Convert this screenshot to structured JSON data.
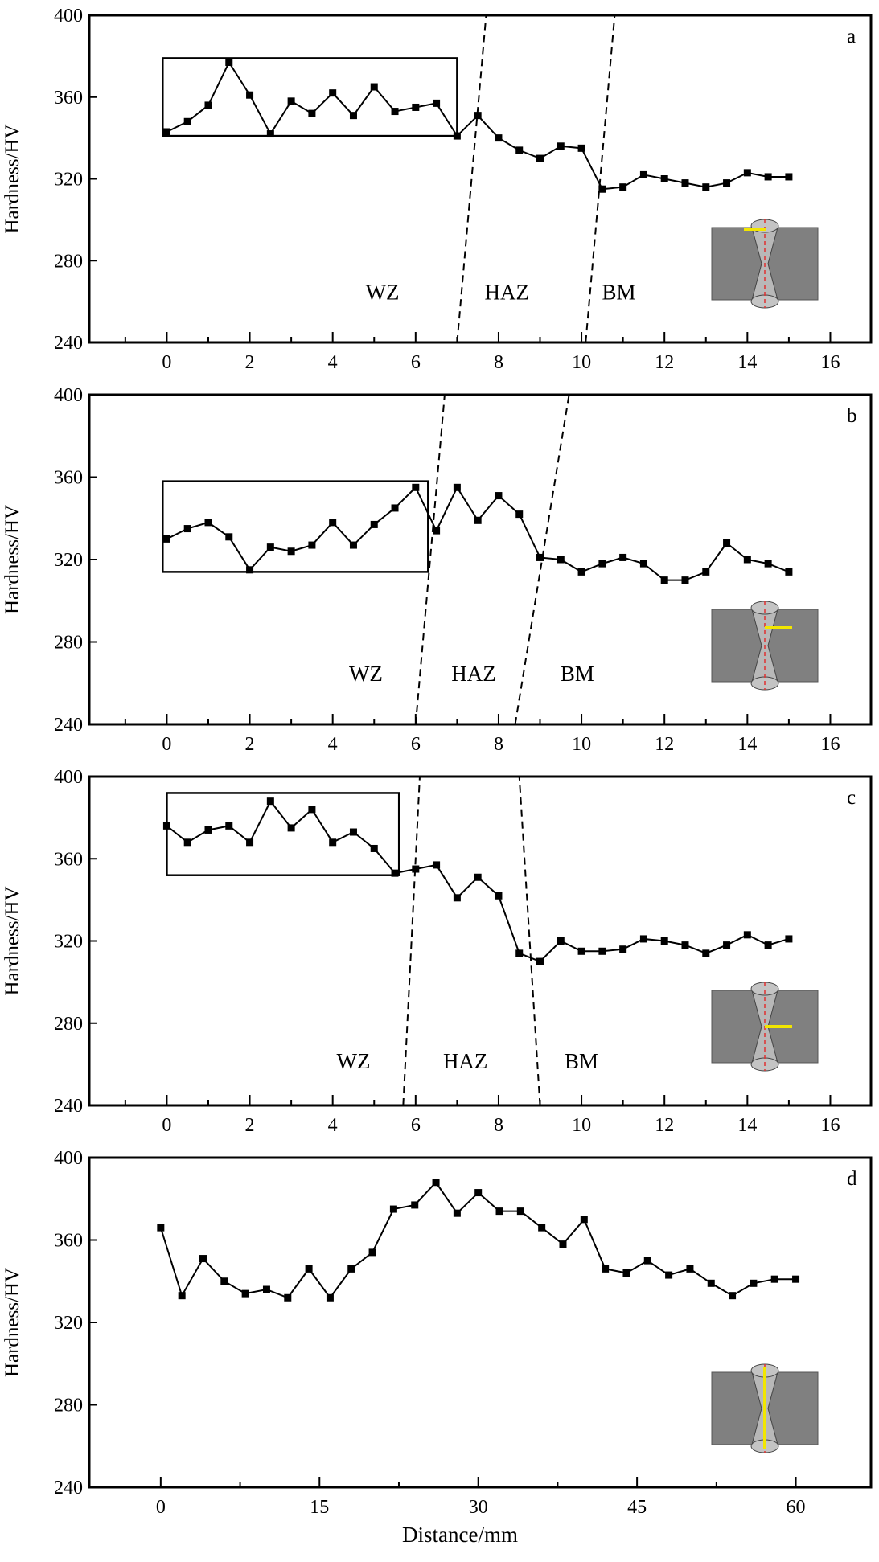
{
  "chart_data": [
    {
      "type": "line",
      "panel_label": "a",
      "ylabel": "Hardness/HV",
      "xlabel": "",
      "ylim": [
        240,
        400
      ],
      "yticks": [
        240,
        280,
        320,
        360,
        400
      ],
      "xlim": [
        -1.87,
        16.98
      ],
      "xticks": [
        0,
        2,
        4,
        6,
        8,
        10,
        12,
        14,
        16
      ],
      "x_start": 0,
      "x_step": 0.5,
      "values": [
        343,
        348,
        356,
        377,
        361,
        342,
        358,
        352,
        362,
        351,
        365,
        353,
        355,
        357,
        341,
        351,
        340,
        334,
        330,
        336,
        335,
        315,
        316,
        322,
        320,
        318,
        316,
        318,
        323,
        321,
        321
      ],
      "zone_labels": [
        {
          "text": "WZ",
          "x": 5.2
        },
        {
          "text": "HAZ",
          "x": 8.2
        },
        {
          "text": "BM",
          "x": 10.9
        }
      ],
      "zone_label_y": 265,
      "boundaries": [
        [
          7.0,
          240,
          7.7,
          400
        ],
        [
          10.1,
          240,
          10.8,
          400
        ]
      ],
      "highlight_box": [
        -0.1,
        341,
        7.0,
        379
      ],
      "inset_line": "top-horizontal"
    },
    {
      "type": "line",
      "panel_label": "b",
      "ylabel": "Hardness/HV",
      "xlabel": "",
      "ylim": [
        240,
        400
      ],
      "yticks": [
        240,
        280,
        320,
        360,
        400
      ],
      "xlim": [
        -1.87,
        16.98
      ],
      "xticks": [
        0,
        2,
        4,
        6,
        8,
        10,
        12,
        14,
        16
      ],
      "x_start": 0,
      "x_step": 0.5,
      "values": [
        330,
        335,
        338,
        331,
        315,
        326,
        324,
        327,
        338,
        327,
        337,
        345,
        355,
        334,
        355,
        339,
        351,
        342,
        321,
        320,
        314,
        318,
        321,
        318,
        310,
        310,
        314,
        328,
        320,
        318,
        314
      ],
      "zone_labels": [
        {
          "text": "WZ",
          "x": 4.8
        },
        {
          "text": "HAZ",
          "x": 7.4
        },
        {
          "text": "BM",
          "x": 9.9
        }
      ],
      "zone_label_y": 265,
      "boundaries": [
        [
          6.0,
          240,
          6.7,
          400
        ],
        [
          8.4,
          240,
          9.7,
          400
        ]
      ],
      "highlight_box": [
        -0.1,
        314,
        6.3,
        358
      ],
      "inset_line": "upper-horizontal"
    },
    {
      "type": "line",
      "panel_label": "c",
      "ylabel": "Hardness/HV",
      "xlabel": "",
      "ylim": [
        240,
        400
      ],
      "yticks": [
        240,
        280,
        320,
        360,
        400
      ],
      "xlim": [
        -1.87,
        16.98
      ],
      "xticks": [
        0,
        2,
        4,
        6,
        8,
        10,
        12,
        14,
        16
      ],
      "x_start": 0,
      "x_step": 0.5,
      "values": [
        376,
        368,
        374,
        376,
        368,
        388,
        375,
        384,
        368,
        373,
        365,
        353,
        355,
        357,
        341,
        351,
        342,
        314,
        310,
        320,
        315,
        315,
        316,
        321,
        320,
        318,
        314,
        318,
        323,
        318,
        321
      ],
      "zone_labels": [
        {
          "text": "WZ",
          "x": 4.5
        },
        {
          "text": "HAZ",
          "x": 7.2
        },
        {
          "text": "BM",
          "x": 10.0
        }
      ],
      "zone_label_y": 262,
      "boundaries": [
        [
          5.7,
          240,
          6.1,
          400
        ],
        [
          9.0,
          240,
          8.5,
          400
        ]
      ],
      "highlight_box": [
        0,
        352,
        5.6,
        392
      ],
      "inset_line": "middle-horizontal"
    },
    {
      "type": "line",
      "panel_label": "d",
      "ylabel": "Hardness/HV",
      "xlabel": "Distance/mm",
      "ylim": [
        240,
        400
      ],
      "yticks": [
        240,
        280,
        320,
        360,
        400
      ],
      "xlim": [
        -6.75,
        67.1
      ],
      "xticks": [
        0,
        15,
        30,
        45,
        60
      ],
      "x_start": 0,
      "x_step": 2,
      "values": [
        366,
        333,
        351,
        340,
        334,
        336,
        332,
        346,
        332,
        346,
        354,
        375,
        377,
        388,
        373,
        383,
        374,
        374,
        366,
        358,
        370,
        346,
        344,
        350,
        343,
        346,
        339,
        333,
        339,
        341,
        341
      ],
      "zone_labels": [],
      "boundaries": [],
      "highlight_box": null,
      "inset_line": "vertical"
    }
  ]
}
